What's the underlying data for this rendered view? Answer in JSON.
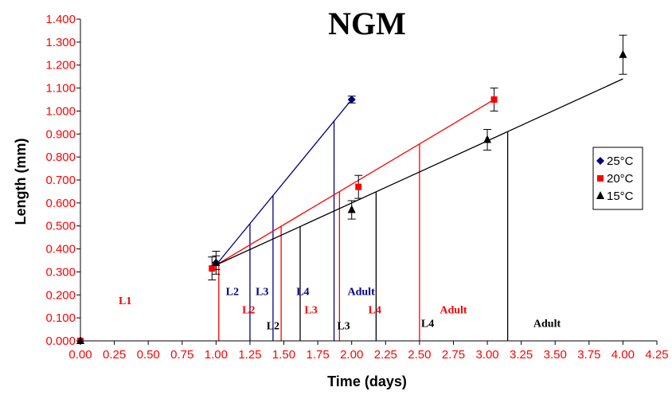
{
  "chart_data": {
    "type": "scatter",
    "title": "NGM",
    "xlabel": "Time (days)",
    "ylabel": "Length (mm)",
    "xlim": [
      0,
      4.25
    ],
    "ylim": [
      0,
      1.4
    ],
    "x_ticks": [
      "0.00",
      "0.25",
      "0.50",
      "0.75",
      "1.00",
      "1.25",
      "1.50",
      "1.75",
      "2.00",
      "2.25",
      "2.50",
      "2.75",
      "3.00",
      "3.25",
      "3.50",
      "3.75",
      "4.00",
      "4.25"
    ],
    "y_ticks": [
      "0.000",
      "0.100",
      "0.200",
      "0.300",
      "0.400",
      "0.500",
      "0.600",
      "0.700",
      "0.800",
      "0.900",
      "1.000",
      "1.100",
      "1.200",
      "1.300",
      "1.400"
    ],
    "legend_position": "right",
    "series": [
      {
        "name": "25°C",
        "color": "#000080",
        "marker": "diamond",
        "points": [
          {
            "x": 0.0,
            "y": 0.0
          },
          {
            "x": 1.0,
            "y": 0.34,
            "err": 0.03
          },
          {
            "x": 2.0,
            "y": 1.05,
            "err": 0.015
          }
        ],
        "fit": [
          [
            1.0,
            0.33
          ],
          [
            2.0,
            1.05
          ]
        ]
      },
      {
        "name": "20°C",
        "color": "#ff0000",
        "marker": "square",
        "points": [
          {
            "x": 0.0,
            "y": 0.0
          },
          {
            "x": 0.97,
            "y": 0.315,
            "err": 0.05
          },
          {
            "x": 2.05,
            "y": 0.67,
            "err": 0.05
          },
          {
            "x": 3.05,
            "y": 1.05,
            "err": 0.05
          }
        ],
        "fit": [
          [
            1.0,
            0.33
          ],
          [
            3.05,
            1.05
          ]
        ]
      },
      {
        "name": "15°C",
        "color": "#000000",
        "marker": "triangle",
        "points": [
          {
            "x": 0.0,
            "y": 0.0
          },
          {
            "x": 1.0,
            "y": 0.34,
            "err": 0.05
          },
          {
            "x": 2.0,
            "y": 0.57,
            "err": 0.04
          },
          {
            "x": 3.0,
            "y": 0.875,
            "err": 0.045
          },
          {
            "x": 4.0,
            "y": 1.245,
            "err": 0.085
          }
        ],
        "fit": [
          [
            1.0,
            0.33
          ],
          [
            4.0,
            1.14
          ]
        ]
      }
    ],
    "stage_lines": [
      {
        "color": "#000080",
        "x": [
          1.25,
          1.42,
          1.87
        ]
      },
      {
        "color": "#ff0000",
        "x": [
          1.02,
          1.48,
          1.91,
          2.5
        ]
      },
      {
        "color": "#000000",
        "x": [
          1.62,
          2.18,
          3.15
        ]
      }
    ],
    "stage_labels": [
      {
        "text": "L1",
        "color": "#ff0000",
        "x": 0.33,
        "y": 0.16
      },
      {
        "text": "L2",
        "color": "#000080",
        "x": 1.12,
        "y": 0.2
      },
      {
        "text": "L3",
        "color": "#000080",
        "x": 1.34,
        "y": 0.2
      },
      {
        "text": "L4",
        "color": "#000080",
        "x": 1.64,
        "y": 0.2
      },
      {
        "text": "Adult",
        "color": "#000080",
        "x": 2.07,
        "y": 0.2
      },
      {
        "text": "L2",
        "color": "#ff0000",
        "x": 1.24,
        "y": 0.12
      },
      {
        "text": "L3",
        "color": "#ff0000",
        "x": 1.7,
        "y": 0.12
      },
      {
        "text": "L4",
        "color": "#ff0000",
        "x": 2.17,
        "y": 0.12
      },
      {
        "text": "Adult",
        "color": "#ff0000",
        "x": 2.75,
        "y": 0.12
      },
      {
        "text": "L2",
        "color": "#000000",
        "x": 1.42,
        "y": 0.05
      },
      {
        "text": "L3",
        "color": "#000000",
        "x": 1.94,
        "y": 0.05
      },
      {
        "text": "L4",
        "color": "#000000",
        "x": 2.56,
        "y": 0.06
      },
      {
        "text": "Adult",
        "color": "#000000",
        "x": 3.44,
        "y": 0.06
      }
    ]
  }
}
